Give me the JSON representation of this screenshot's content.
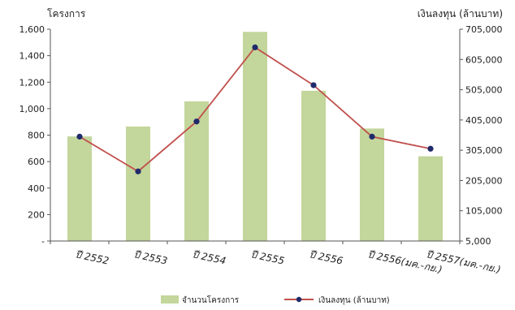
{
  "chart_data": {
    "type": "bar",
    "categories": [
      "ปี 2552",
      "ปี 2553",
      "ปี 2554",
      "ปี 2555",
      "ปี 2556",
      "ปี 2556(มค.-กย.)",
      "ปี 2557(มค.-กย.)"
    ],
    "series": [
      {
        "name": "จำนวนโครงการ",
        "type": "bar",
        "axis": "left",
        "color": "#c3d69b",
        "values": [
          790,
          865,
          1055,
          1580,
          1135,
          850,
          640
        ]
      },
      {
        "name": "เงินลงทุน (ล้านบาท)",
        "type": "line",
        "axis": "right",
        "color": "#c0504d",
        "marker_color": "#1f2a6b",
        "values": [
          350000,
          235000,
          400000,
          645000,
          520000,
          350000,
          310000
        ]
      }
    ],
    "ylabel_left": "โครงการ",
    "ylabel_right": "เงินลงทุน (ล้านบาท)",
    "ylim_left": [
      0,
      1600
    ],
    "ylim_right": [
      5000,
      705000
    ],
    "yticks_left": [
      "-",
      "200",
      "400",
      "600",
      "800",
      "1,000",
      "1,200",
      "1,400",
      "1,600"
    ],
    "yticks_right": [
      "5,000",
      "105,000",
      "205,000",
      "305,000",
      "405,000",
      "505,000",
      "605,000",
      "705,000"
    ],
    "grid": false,
    "legend_position": "bottom"
  }
}
